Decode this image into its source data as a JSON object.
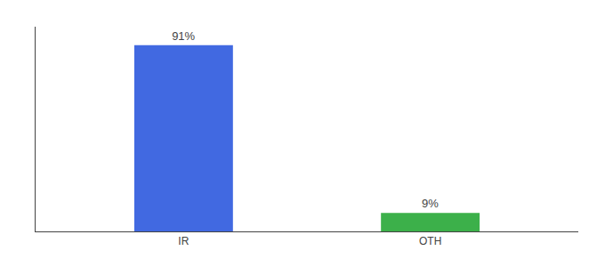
{
  "chart_data": {
    "type": "bar",
    "categories": [
      "IR",
      "OTH"
    ],
    "values": [
      91,
      9
    ],
    "value_labels": [
      "91%",
      "9%"
    ],
    "data_labels": true,
    "colors": [
      "#4169e1",
      "#3cb04a"
    ],
    "ylim": [
      0,
      100
    ],
    "tick_labels": "x",
    "grid": false
  }
}
